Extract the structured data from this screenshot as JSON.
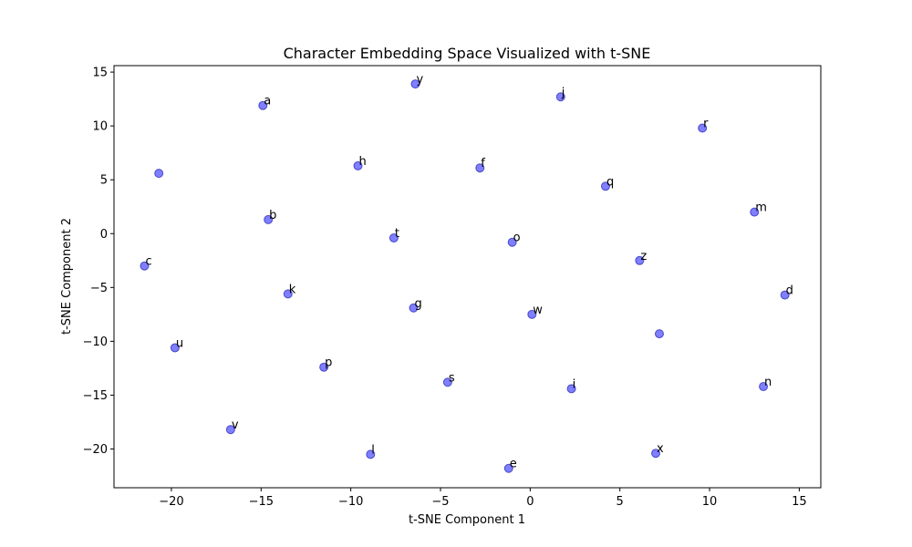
{
  "chart_data": {
    "type": "scatter",
    "title": "Character Embedding Space Visualized with t-SNE",
    "xlabel": "t-SNE Component 1",
    "ylabel": "t-SNE Component 2",
    "xlim": [
      -23.2,
      16.2
    ],
    "ylim": [
      -23.6,
      15.6
    ],
    "xticks": [
      -20,
      -15,
      -10,
      -5,
      0,
      5,
      10,
      15
    ],
    "yticks": [
      -20,
      -15,
      -10,
      -5,
      0,
      5,
      10,
      15
    ],
    "grid": false,
    "point_color": "#0000ff",
    "points": [
      {
        "label": "a",
        "x": -14.9,
        "y": 11.9
      },
      {
        "label": "y",
        "x": -6.4,
        "y": 13.9
      },
      {
        "label": "j",
        "x": 1.7,
        "y": 12.7
      },
      {
        "label": "r",
        "x": 9.6,
        "y": 9.8
      },
      {
        "label": "",
        "x": -20.7,
        "y": 5.6
      },
      {
        "label": "h",
        "x": -9.6,
        "y": 6.3
      },
      {
        "label": "f",
        "x": -2.8,
        "y": 6.1
      },
      {
        "label": "q",
        "x": 4.2,
        "y": 4.4
      },
      {
        "label": "m",
        "x": 12.5,
        "y": 2.0
      },
      {
        "label": "b",
        "x": -14.6,
        "y": 1.3
      },
      {
        "label": "t",
        "x": -7.6,
        "y": -0.4
      },
      {
        "label": "o",
        "x": -1.0,
        "y": -0.8
      },
      {
        "label": "c",
        "x": -21.5,
        "y": -3.0
      },
      {
        "label": "z",
        "x": 6.1,
        "y": -2.5
      },
      {
        "label": "k",
        "x": -13.5,
        "y": -5.6
      },
      {
        "label": "d",
        "x": 14.2,
        "y": -5.7
      },
      {
        "label": "g",
        "x": -6.5,
        "y": -6.9
      },
      {
        "label": "w",
        "x": 0.1,
        "y": -7.5
      },
      {
        "label": "",
        "x": 7.2,
        "y": -9.3
      },
      {
        "label": "u",
        "x": -19.8,
        "y": -10.6
      },
      {
        "label": "p",
        "x": -11.5,
        "y": -12.4
      },
      {
        "label": "s",
        "x": -4.6,
        "y": -13.8
      },
      {
        "label": "i",
        "x": 2.3,
        "y": -14.4
      },
      {
        "label": "n",
        "x": 13.0,
        "y": -14.2
      },
      {
        "label": "v",
        "x": -16.7,
        "y": -18.2
      },
      {
        "label": "l",
        "x": -8.9,
        "y": -20.5
      },
      {
        "label": "x",
        "x": 7.0,
        "y": -20.4
      },
      {
        "label": "e",
        "x": -1.2,
        "y": -21.8
      }
    ]
  }
}
